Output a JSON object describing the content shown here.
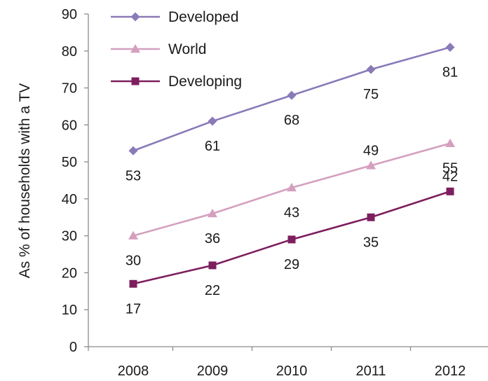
{
  "chart_data": {
    "type": "line",
    "title": "",
    "xlabel": "",
    "ylabel": "As % of households with a TV",
    "categories": [
      "2008",
      "2009",
      "2010",
      "2011",
      "2012"
    ],
    "ylim": [
      0,
      90
    ],
    "yticks": [
      0,
      10,
      20,
      30,
      40,
      50,
      60,
      70,
      80,
      90
    ],
    "grid": false,
    "legend": "top-left",
    "series": [
      {
        "name": "Developed",
        "values": [
          53,
          61,
          68,
          75,
          81
        ],
        "labels": [
          "53",
          "61",
          "68",
          "75",
          "81"
        ],
        "color": "#8a7ab8",
        "marker": "diamond"
      },
      {
        "name": "World",
        "values": [
          30,
          36,
          43,
          49,
          55
        ],
        "labels": [
          "30",
          "36",
          "43",
          "49",
          "55"
        ],
        "color": "#d4a0bf",
        "marker": "triangle"
      },
      {
        "name": "Developing",
        "values": [
          17,
          22,
          29,
          35,
          42
        ],
        "labels": [
          "17",
          "22",
          "29",
          "35",
          "42"
        ],
        "color": "#7d1e5e",
        "marker": "square"
      }
    ]
  }
}
